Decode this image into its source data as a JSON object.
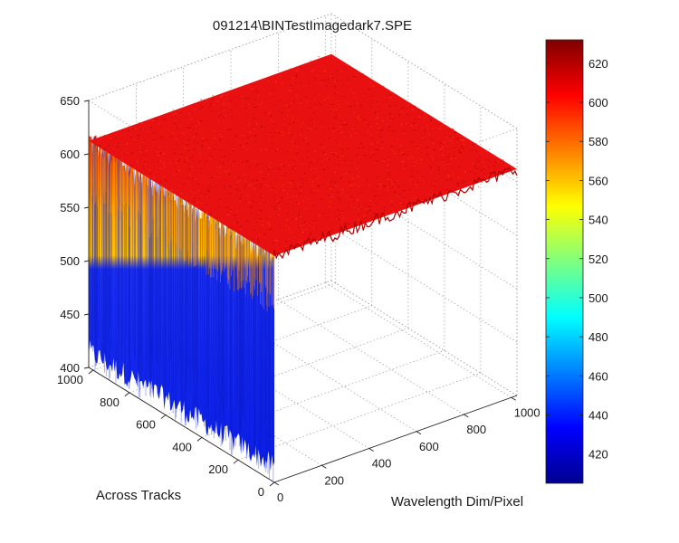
{
  "chart_data": {
    "type": "surface",
    "title": "091214\\BINTestImagedark7.SPE",
    "x_axis": {
      "label": "Wavelength Dim/Pixel",
      "range": [
        0,
        1024
      ],
      "ticks": [
        0,
        200,
        400,
        600,
        800,
        1000
      ]
    },
    "y_axis": {
      "label": "Across Tracks",
      "range": [
        0,
        1024
      ],
      "ticks": [
        0,
        200,
        400,
        600,
        800,
        1000
      ]
    },
    "z_axis": {
      "label": "",
      "range": [
        400,
        650
      ],
      "ticks": [
        400,
        450,
        500,
        550,
        600,
        650
      ]
    },
    "surface": {
      "mean_level": 612,
      "noise_min": 596,
      "noise_max": 630,
      "floor": 400
    },
    "colorbar": {
      "range": [
        405,
        632
      ],
      "ticks": [
        420,
        440,
        460,
        480,
        500,
        520,
        540,
        560,
        580,
        600,
        620
      ],
      "colormap": "jet"
    },
    "grid": true
  }
}
